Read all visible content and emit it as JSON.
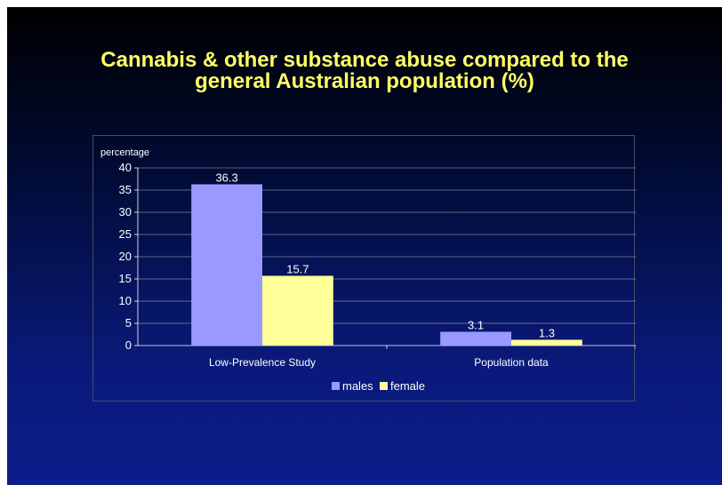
{
  "slide": {
    "title": "Cannabis & other substance abuse compared to the\ngeneral Australian population  (%)"
  },
  "colors": {
    "title": "#ffff66",
    "males": "#9999ff",
    "female": "#ffff99",
    "gridline": "#ffffff",
    "text": "#ffffff"
  },
  "chart_data": {
    "type": "bar",
    "title": "",
    "xlabel": "",
    "ylabel": "percentage",
    "categories": [
      "Low-Prevalence Study",
      "Population data"
    ],
    "series": [
      {
        "name": "males",
        "values": [
          36.3,
          3.1
        ]
      },
      {
        "name": "female",
        "values": [
          15.7,
          1.3
        ]
      }
    ],
    "data_labels": [
      [
        "36.3",
        "3.1"
      ],
      [
        "15.7",
        "1.3"
      ]
    ],
    "ylim": [
      0,
      40
    ],
    "yticks": [
      0,
      5,
      10,
      15,
      20,
      25,
      30,
      35,
      40
    ],
    "grid": true,
    "legend_position": "bottom"
  }
}
